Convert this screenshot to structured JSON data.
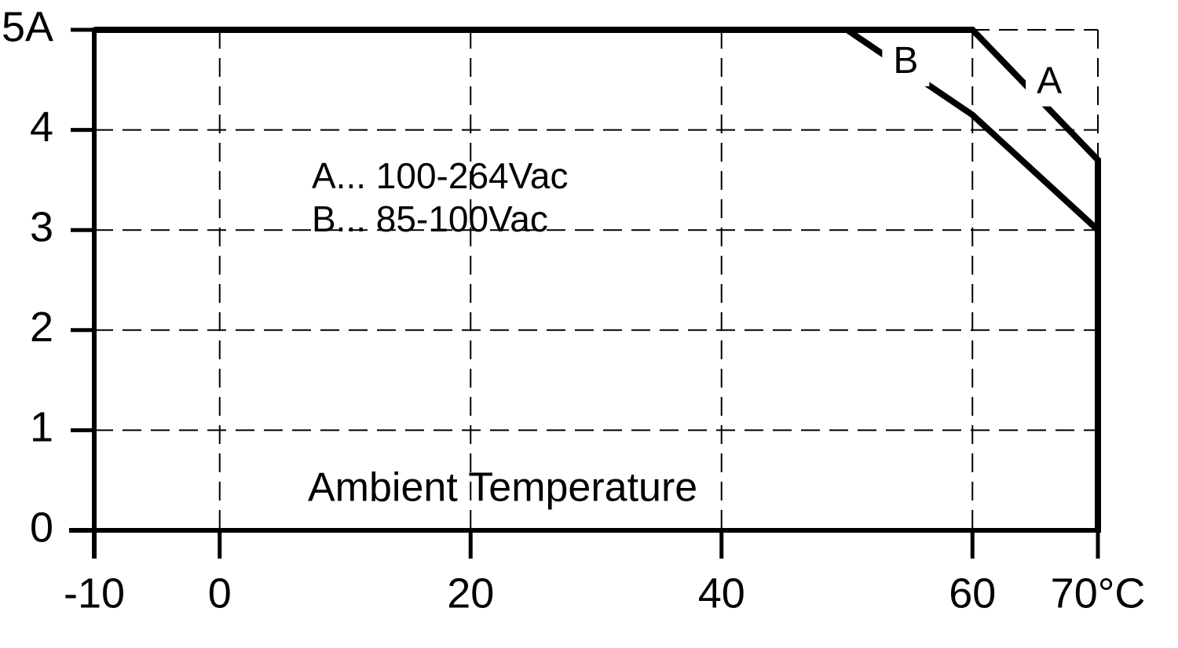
{
  "chart_data": {
    "type": "line",
    "x_label": "Ambient Temperature",
    "annotations": [
      "A... 100-264Vac",
      "B... 85-100Vac"
    ],
    "xlim": [
      -10,
      70
    ],
    "xticks": [
      -10,
      0,
      20,
      40,
      60,
      {
        "value": 70,
        "label": "70°C"
      }
    ],
    "ylim": [
      0,
      5
    ],
    "yticks": [
      0,
      1,
      2,
      3,
      4,
      {
        "value": 5,
        "label": "5A"
      }
    ],
    "grid": true,
    "series": [
      {
        "name": "A",
        "color": "#000000",
        "x": [
          -10,
          60,
          70,
          70
        ],
        "values": [
          5,
          5,
          3.7,
          0
        ]
      },
      {
        "name": "B",
        "color": "#000000",
        "x": [
          50,
          60,
          70,
          70
        ],
        "values": [
          5,
          4.15,
          3,
          0
        ]
      }
    ]
  }
}
